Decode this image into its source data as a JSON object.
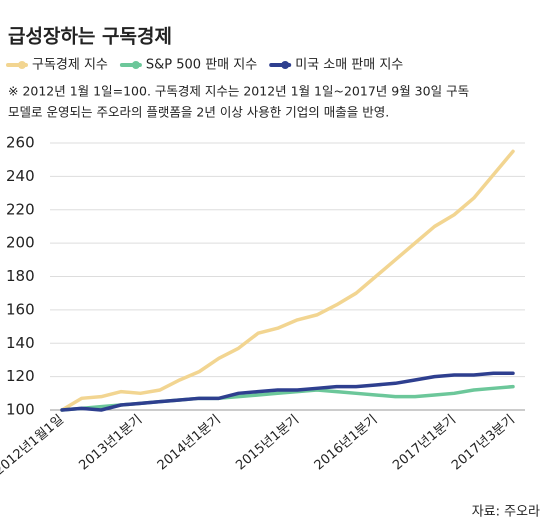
{
  "chart_data": {
    "type": "line",
    "title": "급성장하는 구독경제",
    "notes": [
      "※ 2012년 1월 1일=100. 구독경제 지수는 2012년 1월 1일~2017년 9월 30일 구독",
      "모델로 운영되는 주오라의 플랫폼을 2년 이상 사용한 기업의 매출을 반영."
    ],
    "source": "자료: 주오라",
    "categories": [
      "2012년1월1일",
      null,
      null,
      null,
      "2013년1분기",
      null,
      null,
      null,
      "2014년1분기",
      null,
      null,
      null,
      "2015년1분기",
      null,
      null,
      null,
      "2016년1분기",
      null,
      null,
      null,
      "2017년1분기",
      null,
      null,
      "2017년3분기"
    ],
    "series": [
      {
        "name": "구독경제 지수",
        "color": "#f2d591",
        "values": [
          100,
          107,
          108,
          111,
          110,
          112,
          118,
          123,
          131,
          137,
          146,
          149,
          154,
          157,
          163,
          170,
          180,
          190,
          200,
          210,
          217,
          227,
          241,
          255
        ]
      },
      {
        "name": "S&P 500 판매 지수",
        "color": "#6cc79a",
        "values": [
          100,
          101,
          102,
          103,
          104,
          105,
          106,
          107,
          107,
          108,
          109,
          110,
          111,
          112,
          111,
          110,
          109,
          108,
          108,
          109,
          110,
          112,
          113,
          114
        ]
      },
      {
        "name": "미국 소매 판매 지수",
        "color": "#2e3f8f",
        "values": [
          100,
          101,
          100,
          103,
          104,
          105,
          106,
          107,
          107,
          110,
          111,
          112,
          112,
          113,
          114,
          114,
          115,
          116,
          118,
          120,
          121,
          121,
          122,
          122
        ]
      }
    ],
    "ylim": [
      100,
      260
    ],
    "yticks": [
      100,
      120,
      140,
      160,
      180,
      200,
      220,
      240,
      260
    ],
    "grid": true
  }
}
